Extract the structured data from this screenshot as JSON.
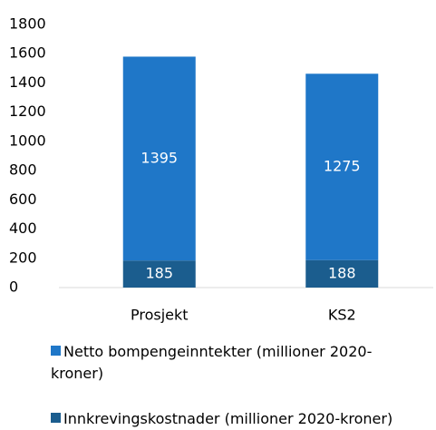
{
  "chart_data": {
    "type": "stacked_bar",
    "categories": [
      "Prosjekt",
      "KS2"
    ],
    "series": [
      {
        "name": "Innkrevingskostnader (millioner 2020-kroner)",
        "color": "#1b5d8e",
        "values": [
          185,
          188
        ]
      },
      {
        "name": "Netto bompengeinntekter (millioner 2020-kroner)",
        "color": "#1f77c8",
        "values": [
          1395,
          1275
        ]
      }
    ],
    "ylim": [
      0,
      1800
    ],
    "yticks": [
      0,
      200,
      400,
      600,
      800,
      1000,
      1200,
      1400,
      1600,
      1800
    ]
  }
}
